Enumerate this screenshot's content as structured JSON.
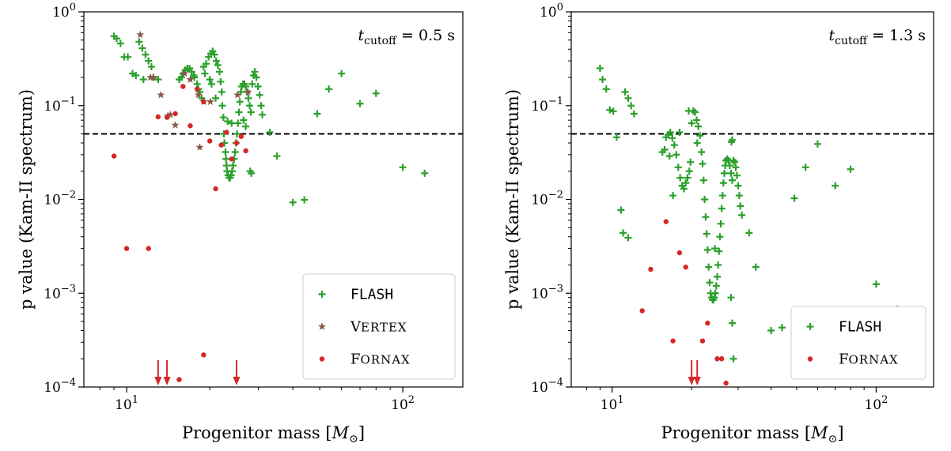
{
  "chart_data": [
    {
      "type": "scatter",
      "panel": "left",
      "xlabel": "Progenitor mass [M⊙]",
      "ylabel": "p value (Kam-II spectrum)",
      "xscale": "log",
      "yscale": "log",
      "xlim": [
        7,
        165
      ],
      "ylim": [
        0.0001,
        1
      ],
      "x_ticks": [
        {
          "value": 10,
          "label": "10¹"
        },
        {
          "value": 100,
          "label": "10²"
        }
      ],
      "y_ticks": [
        {
          "value": 1,
          "label": "10⁰"
        },
        {
          "value": 0.1,
          "label": "10⁻¹"
        },
        {
          "value": 0.01,
          "label": "10⁻²"
        },
        {
          "value": 0.001,
          "label": "10⁻³"
        },
        {
          "value": 0.0001,
          "label": "10⁻⁴"
        }
      ],
      "threshold": 0.05,
      "annotation": "t_cutoff = 0.5 s",
      "annotation_parts": {
        "t": "t",
        "sub": "cutoff",
        "rest": " = 0.5 s"
      },
      "legend_placement": "bottom-right",
      "series": [
        {
          "name": "FLASH",
          "marker": "plus",
          "color": "#2ca02c",
          "points": [
            [
              9,
              0.55
            ],
            [
              9.2,
              0.52
            ],
            [
              9.5,
              0.46
            ],
            [
              9.8,
              0.33
            ],
            [
              10.1,
              0.33
            ],
            [
              10.5,
              0.22
            ],
            [
              10.8,
              0.21
            ],
            [
              11.1,
              0.48
            ],
            [
              11.4,
              0.41
            ],
            [
              11.7,
              0.35
            ],
            [
              12,
              0.3
            ],
            [
              12.3,
              0.26
            ],
            [
              11.5,
              0.19
            ],
            [
              12.5,
              0.2
            ],
            [
              13,
              0.19
            ],
            [
              16,
              0.22
            ],
            [
              16.3,
              0.24
            ],
            [
              16.6,
              0.25
            ],
            [
              16.9,
              0.25
            ],
            [
              17.2,
              0.23
            ],
            [
              17.6,
              0.2
            ],
            [
              18,
              0.17
            ],
            [
              18.4,
              0.14
            ],
            [
              18.7,
              0.12
            ],
            [
              15.5,
              0.19
            ],
            [
              15.8,
              0.2
            ],
            [
              19,
              0.26
            ],
            [
              19.4,
              0.28
            ],
            [
              19.8,
              0.33
            ],
            [
              20.2,
              0.36
            ],
            [
              20.5,
              0.38
            ],
            [
              20.8,
              0.35
            ],
            [
              21.1,
              0.3
            ],
            [
              21.4,
              0.27
            ],
            [
              21.7,
              0.23
            ],
            [
              21.9,
              0.18
            ],
            [
              22.1,
              0.14
            ],
            [
              22.2,
              0.1
            ],
            [
              22.4,
              0.075
            ],
            [
              22.5,
              0.05
            ],
            [
              22.6,
              0.04
            ],
            [
              22.8,
              0.032
            ],
            [
              22.9,
              0.027
            ],
            [
              23,
              0.023
            ],
            [
              23.1,
              0.02
            ],
            [
              23.3,
              0.018
            ],
            [
              23.5,
              0.017
            ],
            [
              23.7,
              0.017
            ],
            [
              23.9,
              0.018
            ],
            [
              24.1,
              0.02
            ],
            [
              24.3,
              0.023
            ],
            [
              24.5,
              0.027
            ],
            [
              24.7,
              0.032
            ],
            [
              24.9,
              0.04
            ],
            [
              25.1,
              0.05
            ],
            [
              25.3,
              0.065
            ],
            [
              25.5,
              0.085
            ],
            [
              25.7,
              0.11
            ],
            [
              25.9,
              0.14
            ],
            [
              26.1,
              0.16
            ],
            [
              26.4,
              0.17
            ],
            [
              26.7,
              0.17
            ],
            [
              27,
              0.16
            ],
            [
              27.3,
              0.14
            ],
            [
              27.6,
              0.12
            ],
            [
              27.9,
              0.1
            ],
            [
              28.2,
              0.085
            ],
            [
              28.5,
              0.17
            ],
            [
              28.8,
              0.21
            ],
            [
              29.1,
              0.23
            ],
            [
              29.5,
              0.2
            ],
            [
              29.9,
              0.16
            ],
            [
              30.3,
              0.13
            ],
            [
              30.7,
              0.1
            ],
            [
              31,
              0.08
            ],
            [
              28,
              0.02
            ],
            [
              28.3,
              0.019
            ],
            [
              26.5,
              0.07
            ],
            [
              27,
              0.06
            ],
            [
              33,
              0.052
            ],
            [
              35,
              0.029
            ],
            [
              40,
              0.0093
            ],
            [
              44,
              0.0099
            ],
            [
              49,
              0.082
            ],
            [
              54,
              0.15
            ],
            [
              60,
              0.22
            ],
            [
              70,
              0.105
            ],
            [
              80,
              0.135
            ],
            [
              100,
              0.022
            ],
            [
              120,
              0.019
            ],
            [
              17.5,
              0.21
            ],
            [
              18.2,
              0.15
            ],
            [
              19.2,
              0.22
            ],
            [
              20,
              0.19
            ],
            [
              20.3,
              0.17
            ],
            [
              21,
              0.12
            ],
            [
              24,
              0.065
            ],
            [
              23.2,
              0.068
            ]
          ]
        },
        {
          "name": "VERTEX",
          "marker": "star",
          "color": "#8c564b",
          "points": [
            [
              11.2,
              0.57
            ],
            [
              12.2,
              0.2
            ],
            [
              12.5,
              0.2
            ],
            [
              13.3,
              0.13
            ],
            [
              14.1,
              0.078
            ],
            [
              14.4,
              0.08
            ],
            [
              15,
              0.062
            ],
            [
              16.2,
              0.22
            ],
            [
              17,
              0.19
            ],
            [
              18.2,
              0.13
            ],
            [
              18.4,
              0.036
            ],
            [
              19,
              0.11
            ],
            [
              20.1,
              0.11
            ],
            [
              25.2,
              0.13
            ],
            [
              27.5,
              0.14
            ]
          ]
        },
        {
          "name": "FORNAX",
          "marker": "circle",
          "color": "#d62728",
          "points": [
            [
              9,
              0.029
            ],
            [
              10,
              0.003
            ],
            [
              12,
              0.003
            ],
            [
              13,
              0.076
            ],
            [
              14,
              0.075
            ],
            [
              15,
              0.082
            ],
            [
              16,
              0.16
            ],
            [
              17,
              0.061
            ],
            [
              18,
              0.15
            ],
            [
              19,
              0.11
            ],
            [
              19,
              0.00022
            ],
            [
              20,
              0.042
            ],
            [
              21,
              0.013
            ],
            [
              22,
              0.038
            ],
            [
              23,
              0.052
            ],
            [
              24,
              0.027
            ],
            [
              25,
              0.04
            ],
            [
              26,
              0.047
            ],
            [
              27,
              0.033
            ],
            [
              15.5,
              0.00012
            ]
          ]
        }
      ],
      "arrows_at_mass": [
        13,
        14,
        25
      ]
    },
    {
      "type": "scatter",
      "panel": "right",
      "xlabel": "Progenitor mass [M⊙]",
      "ylabel": "p value (Kam-II spectrum)",
      "xscale": "log",
      "yscale": "log",
      "xlim": [
        7,
        165
      ],
      "ylim": [
        0.0001,
        1
      ],
      "x_ticks": [
        {
          "value": 10,
          "label": "10¹"
        },
        {
          "value": 100,
          "label": "10²"
        }
      ],
      "y_ticks": [
        {
          "value": 1,
          "label": "10⁰"
        },
        {
          "value": 0.1,
          "label": "10⁻¹"
        },
        {
          "value": 0.01,
          "label": "10⁻²"
        },
        {
          "value": 0.001,
          "label": "10⁻³"
        },
        {
          "value": 0.0001,
          "label": "10⁻⁴"
        }
      ],
      "threshold": 0.05,
      "annotation": "t_cutoff = 1.3 s",
      "annotation_parts": {
        "t": "t",
        "sub": "cutoff",
        "rest": " = 1.3 s"
      },
      "legend_placement": "bottom-right",
      "series": [
        {
          "name": "FLASH",
          "marker": "plus",
          "color": "#2ca02c",
          "points": [
            [
              9,
              0.25
            ],
            [
              9.2,
              0.19
            ],
            [
              9.5,
              0.15
            ],
            [
              9.8,
              0.09
            ],
            [
              10.1,
              0.087
            ],
            [
              10.4,
              0.046
            ],
            [
              10.8,
              0.0077
            ],
            [
              11,
              0.0044
            ],
            [
              11.5,
              0.0039
            ],
            [
              11.2,
              0.14
            ],
            [
              11.5,
              0.12
            ],
            [
              11.8,
              0.1
            ],
            [
              12.1,
              0.082
            ],
            [
              15.5,
              0.032
            ],
            [
              15.8,
              0.034
            ],
            [
              16,
              0.046
            ],
            [
              16.3,
              0.049
            ],
            [
              16.6,
              0.052
            ],
            [
              16.9,
              0.045
            ],
            [
              17.2,
              0.038
            ],
            [
              17.5,
              0.03
            ],
            [
              17.8,
              0.022
            ],
            [
              18.1,
              0.017
            ],
            [
              18.4,
              0.014
            ],
            [
              18.7,
              0.013
            ],
            [
              19,
              0.015
            ],
            [
              19.3,
              0.017
            ],
            [
              19.6,
              0.02
            ],
            [
              19.8,
              0.025
            ],
            [
              20,
              0.065
            ],
            [
              20.3,
              0.088
            ],
            [
              20.6,
              0.085
            ],
            [
              20.9,
              0.07
            ],
            [
              21.2,
              0.06
            ],
            [
              21.5,
              0.048
            ],
            [
              21.8,
              0.032
            ],
            [
              22,
              0.024
            ],
            [
              22.2,
              0.016
            ],
            [
              22.4,
              0.01
            ],
            [
              22.6,
              0.0065
            ],
            [
              22.8,
              0.0043
            ],
            [
              23,
              0.0029
            ],
            [
              23.2,
              0.0019
            ],
            [
              23.4,
              0.0013
            ],
            [
              23.6,
              0.001
            ],
            [
              23.8,
              0.0009
            ],
            [
              24,
              0.00085
            ],
            [
              24.2,
              0.00085
            ],
            [
              24.4,
              0.0009
            ],
            [
              24.6,
              0.001
            ],
            [
              24.8,
              0.0012
            ],
            [
              25,
              0.0015
            ],
            [
              25.2,
              0.002
            ],
            [
              25.4,
              0.0028
            ],
            [
              25.6,
              0.004
            ],
            [
              25.8,
              0.0055
            ],
            [
              26,
              0.008
            ],
            [
              26.2,
              0.011
            ],
            [
              26.4,
              0.015
            ],
            [
              26.6,
              0.019
            ],
            [
              26.8,
              0.023
            ],
            [
              27,
              0.026
            ],
            [
              27.3,
              0.027
            ],
            [
              27.6,
              0.026
            ],
            [
              27.9,
              0.023
            ],
            [
              28.2,
              0.019
            ],
            [
              28.5,
              0.016
            ],
            [
              28.8,
              0.026
            ],
            [
              29.1,
              0.025
            ],
            [
              29.4,
              0.022
            ],
            [
              29.7,
              0.018
            ],
            [
              30,
              0.014
            ],
            [
              30.3,
              0.011
            ],
            [
              30.6,
              0.0085
            ],
            [
              28.3,
              0.041
            ],
            [
              28.5,
              0.043
            ],
            [
              28.2,
              0.0009
            ],
            [
              28.5,
              0.00048
            ],
            [
              28.8,
              0.0002
            ],
            [
              31,
              0.0068
            ],
            [
              33,
              0.0044
            ],
            [
              35,
              0.0019
            ],
            [
              40,
              0.0004
            ],
            [
              44,
              0.00043
            ],
            [
              49,
              0.0103
            ],
            [
              54,
              0.022
            ],
            [
              60,
              0.039
            ],
            [
              70,
              0.014
            ],
            [
              80,
              0.021
            ],
            [
              100,
              0.00125
            ],
            [
              120,
              0.00068
            ],
            [
              16.5,
              0.029
            ],
            [
              17,
              0.011
            ],
            [
              18,
              0.052
            ],
            [
              19.5,
              0.088
            ],
            [
              21,
              0.04
            ],
            [
              24.5,
              0.003
            ]
          ]
        },
        {
          "name": "FORNAX",
          "marker": "circle",
          "color": "#d62728",
          "points": [
            [
              13,
              0.00065
            ],
            [
              14,
              0.0018
            ],
            [
              16,
              0.0058
            ],
            [
              17,
              0.00031
            ],
            [
              18,
              0.0027
            ],
            [
              19,
              0.0019
            ],
            [
              22,
              0.00031
            ],
            [
              23,
              0.00048
            ],
            [
              25,
              0.0002
            ],
            [
              26,
              0.0002
            ],
            [
              27,
              0.00011
            ]
          ]
        }
      ],
      "arrows_at_mass": [
        20,
        21
      ]
    }
  ]
}
